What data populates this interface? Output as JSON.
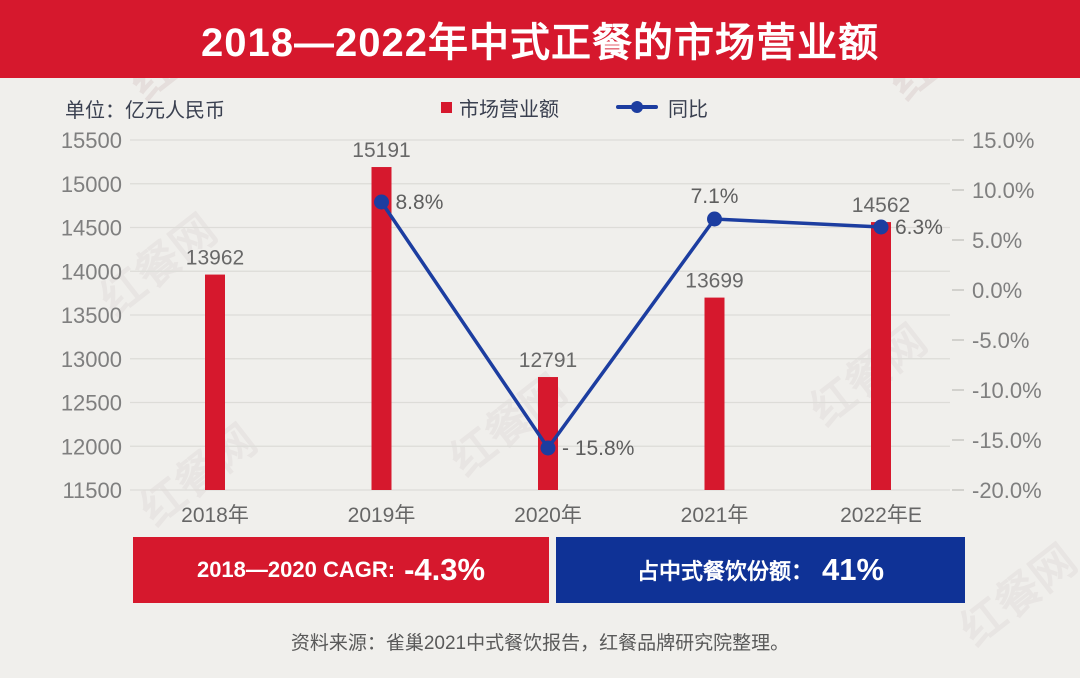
{
  "title": "2018—2022年中式正餐的市场营业额",
  "unit_label": "单位：亿元人民币",
  "legend": {
    "bars": "市场营业额",
    "line": "同比"
  },
  "chart_data": {
    "type": "bar+line",
    "title": "2018—2022年中式正餐的市场营业额",
    "unit": "亿元人民币",
    "categories": [
      "2018年",
      "2019年",
      "2020年",
      "2021年",
      "2022年E"
    ],
    "series": [
      {
        "name": "市场营业额",
        "type": "bar",
        "axis": "left",
        "color": "#d6182d",
        "values": [
          13962,
          15191,
          12791,
          13699,
          14562
        ]
      },
      {
        "name": "同比",
        "type": "line",
        "axis": "right",
        "color": "#1c3da0",
        "values": [
          null,
          8.8,
          -15.8,
          7.1,
          6.3
        ],
        "labels": [
          null,
          "8.8%",
          "- 15.8%",
          "7.1%",
          "6.3%"
        ],
        "label_pos": [
          null,
          "right",
          "right",
          "top",
          "right"
        ]
      }
    ],
    "left_axis": {
      "min": 11500,
      "max": 15500,
      "step": 500,
      "ticks": [
        {
          "label": "15500",
          "v": 15500
        },
        {
          "label": "15000",
          "v": 15000
        },
        {
          "label": "14500",
          "v": 14500
        },
        {
          "label": "14000",
          "v": 14000
        },
        {
          "label": "13500",
          "v": 13500
        },
        {
          "label": "13000",
          "v": 13000
        },
        {
          "label": "12500",
          "v": 12500
        },
        {
          "label": "12000",
          "v": 12000
        },
        {
          "label": "11500",
          "v": 11500
        }
      ]
    },
    "right_axis": {
      "min": -20,
      "max": 15,
      "step": 5,
      "ticks": [
        {
          "label": "15.0%",
          "v": 15
        },
        {
          "label": "10.0%",
          "v": 10
        },
        {
          "label": "5.0%",
          "v": 5
        },
        {
          "label": "0.0%",
          "v": 0
        },
        {
          "label": "-5.0%",
          "v": -5
        },
        {
          "label": "-10.0%",
          "v": -10
        },
        {
          "label": "-15.0%",
          "v": -15
        },
        {
          "label": "-20.0%",
          "v": -20
        }
      ]
    },
    "grid": true,
    "legend_position": "top"
  },
  "badges": [
    {
      "prefix": "2018—2020 CAGR:",
      "value": "-4.3%",
      "color": "#d6182d"
    },
    {
      "prefix": "占中式餐饮份额：",
      "value": "41%",
      "color": "#0f3296"
    }
  ],
  "source": "资料来源：雀巢2021中式餐饮报告，红餐品牌研究院整理。",
  "watermark": "红餐网",
  "colors": {
    "red": "#d6182d",
    "line_blue": "#1c3da0",
    "badge_blue": "#0f3296",
    "background": "#f0efec"
  }
}
